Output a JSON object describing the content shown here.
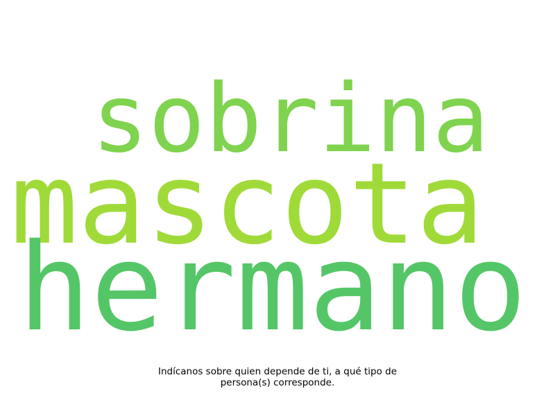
{
  "word_cloud": {
    "words": [
      {
        "text": "sobrina",
        "color": "#7fd34e"
      },
      {
        "text": "mascota",
        "color": "#a0da39"
      },
      {
        "text": "hermano",
        "color": "#55c667"
      }
    ]
  },
  "caption": {
    "line1": "Indícanos sobre quien depende de ti, a qué tipo de",
    "line2": "persona(s) corresponde."
  }
}
